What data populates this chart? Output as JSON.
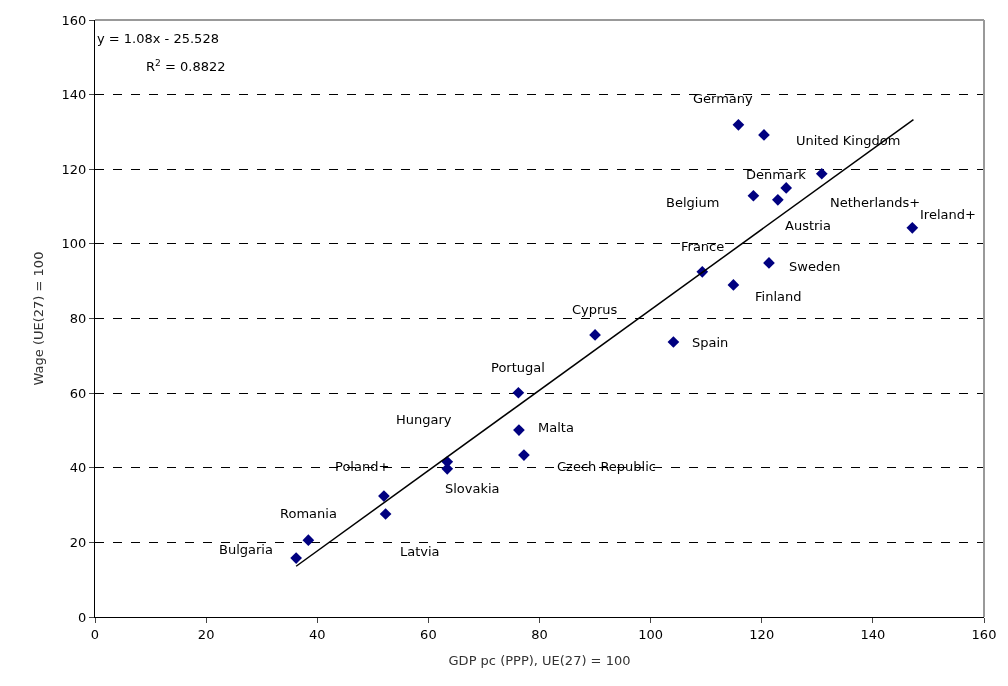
{
  "chart_data": {
    "type": "scatter",
    "xlabel": "GDP pc (PPP), UE(27) = 100",
    "ylabel": "Wage (UE(27) = 100",
    "xlim": [
      0,
      160
    ],
    "xticks": [
      0,
      20,
      40,
      60,
      80,
      100,
      120,
      140,
      160
    ],
    "ylim": [
      0,
      160
    ],
    "yticks": [
      0,
      20,
      40,
      60,
      80,
      100,
      120,
      140,
      160
    ],
    "grid": "y",
    "marker": "diamond",
    "series": [
      {
        "color": "#000080",
        "x": [
          36.2,
          38.4,
          52.0,
          52.3,
          63.4,
          63.4,
          76.2,
          76.3,
          77.2,
          90.0,
          104.1,
          109.3,
          114.9,
          121.3,
          118.5,
          122.9,
          124.4,
          115.8,
          120.4,
          130.8,
          147.1
        ],
        "values": [
          15.8,
          20.6,
          32.4,
          27.6,
          41.6,
          39.7,
          60.1,
          50.1,
          43.4,
          75.6,
          73.7,
          92.5,
          89.0,
          94.9,
          112.9,
          111.8,
          115.0,
          131.9,
          129.2,
          118.8,
          104.3
        ]
      },
      {
        "type": "line",
        "marker": "none",
        "color": "#000000",
        "x": [
          36.2,
          147.3
        ],
        "values": [
          13.6,
          133.3
        ]
      }
    ],
    "annotations": [
      "y = 1.08x - 25.528",
      "R$^{2}$ = 0.8822",
      {
        "text": "Bulgaria",
        "x": 36.2,
        "y": 15.8
      },
      {
        "text": "Romania",
        "x": 38.4,
        "y": 20.6
      },
      {
        "text": "Poland+",
        "x": 52.0,
        "y": 32.4
      },
      {
        "text": "Latvia",
        "x": 52.3,
        "y": 27.6
      },
      {
        "text": "Hungary",
        "x": 63.4,
        "y": 41.6
      },
      {
        "text": "Slovakia",
        "x": 63.4,
        "y": 39.7
      },
      {
        "text": "Portugal",
        "x": 76.2,
        "y": 60.1
      },
      {
        "text": "Malta",
        "x": 76.3,
        "y": 50.1
      },
      {
        "text": "Czech Republic",
        "x": 77.2,
        "y": 43.4
      },
      {
        "text": "Cyprus",
        "x": 90.0,
        "y": 75.6
      },
      {
        "text": "Spain",
        "x": 104.1,
        "y": 73.7
      },
      {
        "text": "France",
        "x": 109.3,
        "y": 92.5
      },
      {
        "text": "Finland",
        "x": 114.9,
        "y": 89.0
      },
      {
        "text": "Sweden",
        "x": 121.3,
        "y": 94.9
      },
      {
        "text": "Belgium",
        "x": 118.5,
        "y": 112.9
      },
      "Austria",
      {
        "text": "Denmark",
        "x": 124.4,
        "y": 115.0
      },
      {
        "text": "Germany",
        "x": 115.8,
        "y": 131.9
      },
      {
        "text": "United Kingdom",
        "x": 120.4,
        "y": 129.2
      },
      "Netherlands+",
      {
        "text": "Ireland+",
        "x": 147.1,
        "y": 104.3
      }
    ]
  }
}
